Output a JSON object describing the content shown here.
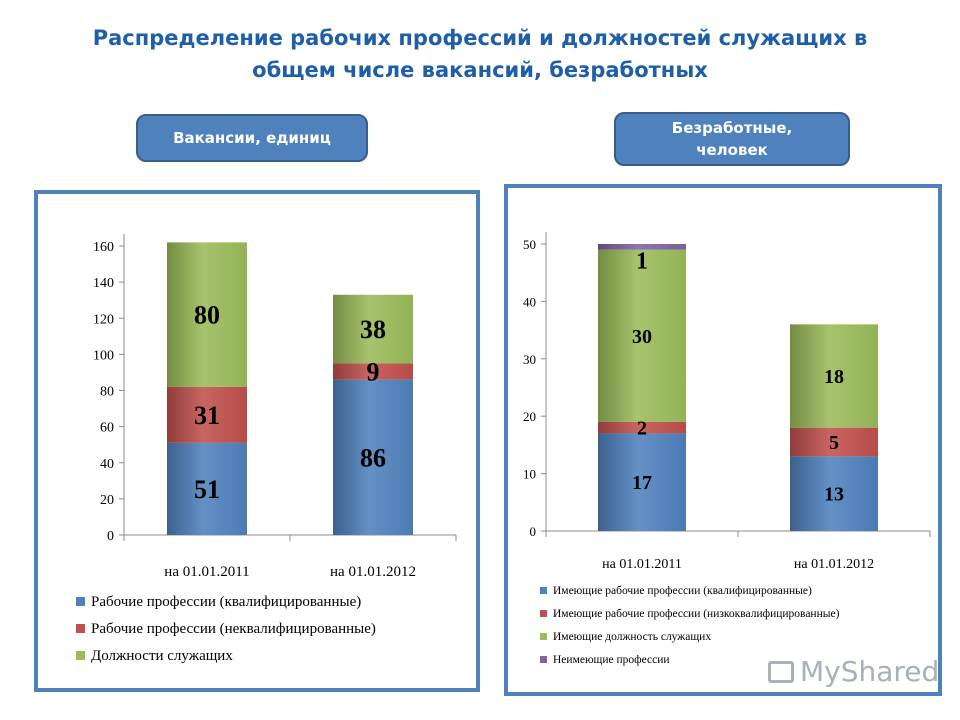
{
  "header": {
    "title_line1": "Распределение рабочих профессий и должностей служащих в",
    "title_line2": "общем числе вакансий, безработных",
    "pill_left": "Вакансии, единиц",
    "pill_right_line1": "Безработные,",
    "pill_right_line2": "человек"
  },
  "watermark": "MyShared",
  "chart_data": [
    {
      "type": "bar",
      "stacked": true,
      "categories": [
        "на 01.01.2011",
        "на 01.01.2012"
      ],
      "ylim": [
        0,
        160
      ],
      "yticks": [
        0,
        20,
        40,
        60,
        80,
        100,
        120,
        140,
        160
      ],
      "series": [
        {
          "name": "Рабочие профессии (квалифицированные)",
          "color": "#4f81bd",
          "values": [
            51,
            86
          ]
        },
        {
          "name": "Рабочие профессии (неквалифицированные)",
          "color": "#c0504d",
          "values": [
            31,
            9
          ]
        },
        {
          "name": "Должности служащих",
          "color": "#9bbb59",
          "values": [
            80,
            38
          ]
        }
      ],
      "legend": "bottom"
    },
    {
      "type": "bar",
      "stacked": true,
      "categories": [
        "на 01.01.2011",
        "на 01.01.2012"
      ],
      "ylim": [
        0,
        50
      ],
      "yticks": [
        0,
        10,
        20,
        30,
        40,
        50
      ],
      "series": [
        {
          "name": "Имеющие рабочие профессии (квалифицированные)",
          "color": "#4f81bd",
          "values": [
            17,
            13
          ]
        },
        {
          "name": "Имеющие рабочие профессии (низкоквалифицированные)",
          "color": "#c0504d",
          "values": [
            2,
            5
          ]
        },
        {
          "name": "Имеющие должность служащих",
          "color": "#9bbb59",
          "values": [
            30,
            18
          ]
        },
        {
          "name": "Неимеющие профессии",
          "color": "#8064a2",
          "values": [
            1,
            null
          ]
        }
      ],
      "legend": "bottom"
    }
  ]
}
